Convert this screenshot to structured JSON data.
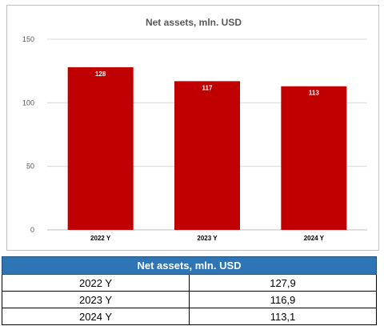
{
  "chart_data": {
    "type": "bar",
    "title": "Net assets, mln. USD",
    "categories": [
      "2022 Y",
      "2023 Y",
      "2024 Y"
    ],
    "values": [
      128,
      117,
      113
    ],
    "data_labels": [
      "128",
      "117",
      "113"
    ],
    "yticks": [
      0,
      50,
      100,
      150
    ],
    "ylim": [
      0,
      150
    ],
    "xlabel": "",
    "ylabel": "",
    "grid": true,
    "bar_color": "#c00000",
    "label_color": "#ffffff"
  },
  "table": {
    "header": "Net assets, mln. USD",
    "rows": [
      {
        "year": "2022 Y",
        "value": "127,9"
      },
      {
        "year": "2023 Y",
        "value": "116,9"
      },
      {
        "year": "2024 Y",
        "value": "113,1"
      }
    ]
  },
  "colors": {
    "bar": "#c00000",
    "table_header_bg": "#2e75b6",
    "gridline": "#d9d9d9"
  }
}
